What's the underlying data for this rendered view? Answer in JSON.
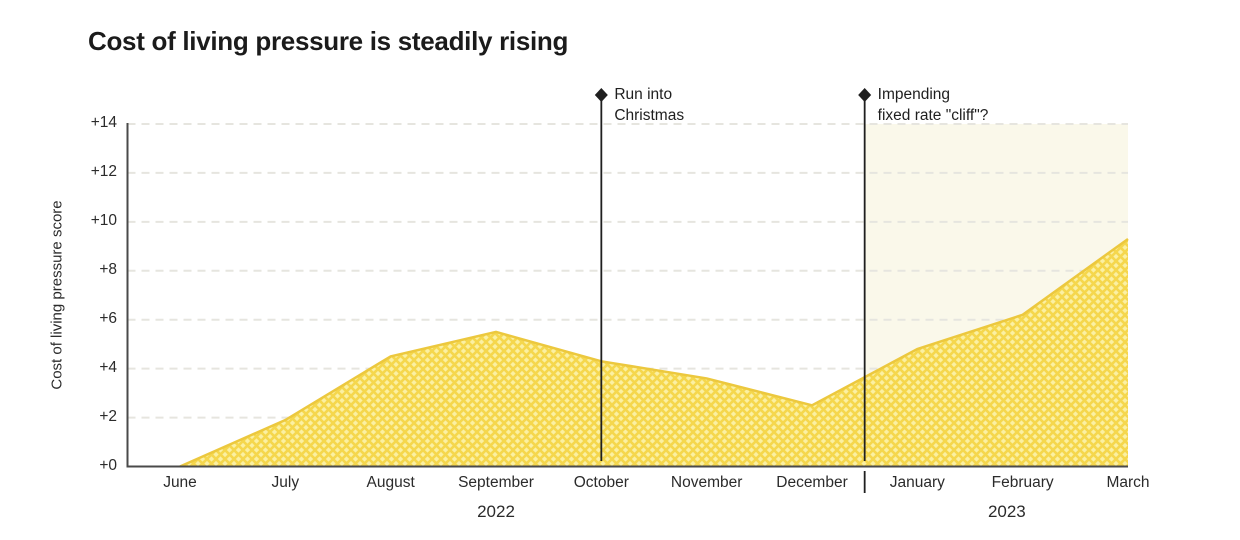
{
  "chart_data": {
    "type": "area",
    "title": "Cost of living pressure is steadily rising",
    "ylabel": "Cost of living pressure score",
    "xlabel": "",
    "categories": [
      "June",
      "July",
      "August",
      "September",
      "October",
      "November",
      "December",
      "January",
      "February",
      "March"
    ],
    "values": [
      0,
      1.9,
      4.5,
      5.5,
      4.3,
      3.6,
      2.5,
      4.8,
      6.2,
      9.3
    ],
    "ylim": [
      0,
      14
    ],
    "ytick_step": 2,
    "ytick_labels": [
      "+0",
      "+2",
      "+4",
      "+6",
      "+8",
      "+10",
      "+12",
      "+14"
    ],
    "grid": "horizontal-dashed",
    "legend": "none",
    "year_labels": [
      {
        "label": "2022",
        "position_month_index": 3
      },
      {
        "label": "2023",
        "position_month_index": 7.85
      }
    ],
    "annotations": [
      {
        "lines": [
          "Run into",
          "Christmas"
        ],
        "month_index": 4,
        "marker": "diamond",
        "year_separator": false,
        "shaded_region_to_end": false
      },
      {
        "lines": [
          "Impending",
          "fixed rate \"cliff\"?"
        ],
        "month_index": 6.5,
        "marker": "diamond",
        "year_separator": true,
        "shaded_region_to_end": true
      }
    ],
    "colors": {
      "hatch_bg": "#FBF0A2",
      "hatch_line": "#F5D74D",
      "area_edge": "#ECC83E",
      "shade": "#FAF8EA",
      "grid": "#E6E5DF",
      "axis": "#4A4A4A",
      "text": "#2B2B2B",
      "title": "#1B1B1B",
      "annotation": "#1F1F1F"
    }
  }
}
